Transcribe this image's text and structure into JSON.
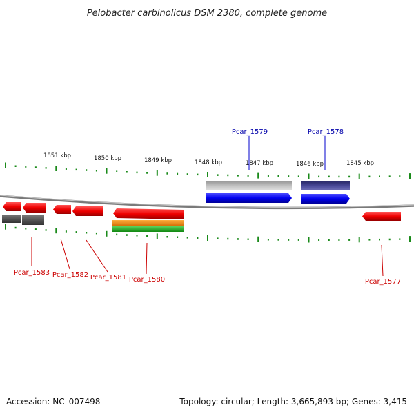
{
  "title": "Pelobacter carbinolicus DSM 2380, complete genome",
  "footer": {
    "accession": "Accession: NC_007498",
    "summary": "Topology: circular; Length: 3,665,893 bp; Genes: 3,415"
  },
  "colors": {
    "ticks": "#1a8a1a",
    "backbone": "#808080",
    "forward_gene": "#0000ee",
    "forward_gene_light": "#b8b8b8",
    "forward_gene_dark": "#3a3a8a",
    "reverse_gene": "#ee0000",
    "reverse_gene_gray": "#555555",
    "orange_feature": "#ff8800",
    "green_feature": "#22bb22",
    "label_top": "#0000aa",
    "label_bottom": "#cc0000"
  },
  "scale_labels": [
    "1851 kbp",
    "1850 kbp",
    "1849 kbp",
    "1848 kbp",
    "1847 kbp",
    "1846 kbp",
    "1845 kbp"
  ],
  "gene_labels_top": [
    "Pcar_1579",
    "Pcar_1578"
  ],
  "gene_labels_bottom": [
    "Pcar_1583",
    "Pcar_1582",
    "Pcar_1581",
    "Pcar_1580",
    "Pcar_1577"
  ]
}
